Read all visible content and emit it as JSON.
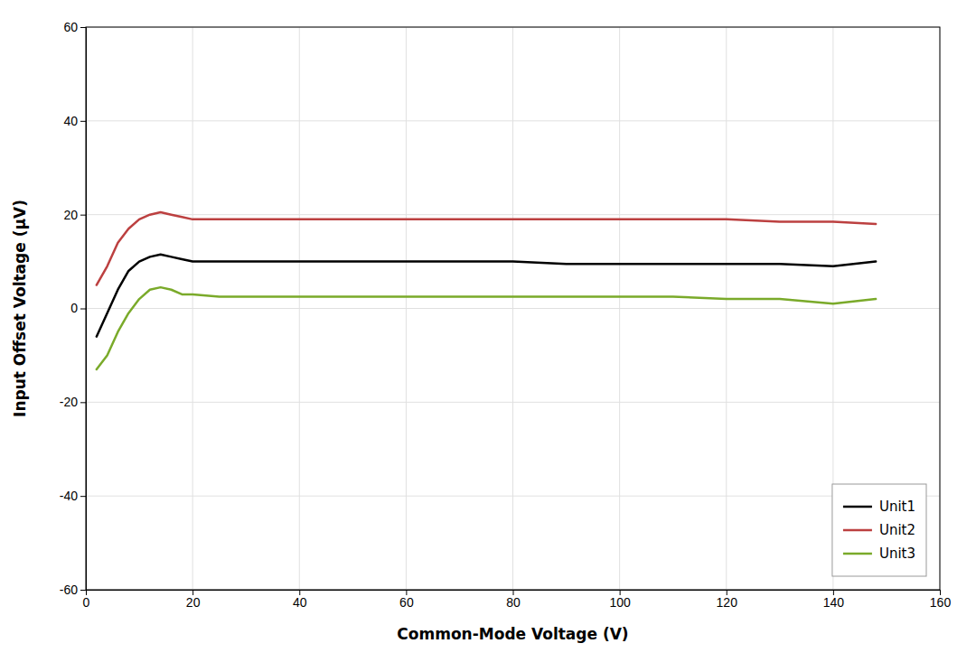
{
  "chart_data": {
    "type": "line",
    "xlabel": "Common-Mode Voltage (V)",
    "ylabel": "Input Offset Voltage (μV)",
    "xlim": [
      0,
      160
    ],
    "ylim": [
      -60,
      60
    ],
    "xticks": [
      0,
      20,
      40,
      60,
      80,
      100,
      120,
      140,
      160
    ],
    "yticks": [
      -60,
      -40,
      -20,
      0,
      20,
      40,
      60
    ],
    "grid": true,
    "legend": "lower right",
    "x": [
      2,
      4,
      6,
      8,
      10,
      12,
      14,
      16,
      18,
      20,
      25,
      30,
      40,
      50,
      60,
      70,
      80,
      90,
      100,
      110,
      120,
      130,
      140,
      148
    ],
    "series": [
      {
        "name": "Unit1",
        "color": "#000000",
        "values": [
          -6,
          -1,
          4,
          8,
          10,
          11,
          11.5,
          11,
          10.5,
          10,
          10,
          10,
          10,
          10,
          10,
          10,
          10,
          9.5,
          9.5,
          9.5,
          9.5,
          9.5,
          9,
          10
        ]
      },
      {
        "name": "Unit2",
        "color": "#bc4040",
        "values": [
          5,
          9,
          14,
          17,
          19,
          20,
          20.5,
          20,
          19.5,
          19,
          19,
          19,
          19,
          19,
          19,
          19,
          19,
          19,
          19,
          19,
          19,
          18.5,
          18.5,
          18
        ]
      },
      {
        "name": "Unit3",
        "color": "#7aaa2a",
        "values": [
          -13,
          -10,
          -5,
          -1,
          2,
          4,
          4.5,
          4,
          3,
          3,
          2.5,
          2.5,
          2.5,
          2.5,
          2.5,
          2.5,
          2.5,
          2.5,
          2.5,
          2.5,
          2,
          2,
          1,
          2
        ]
      }
    ]
  }
}
